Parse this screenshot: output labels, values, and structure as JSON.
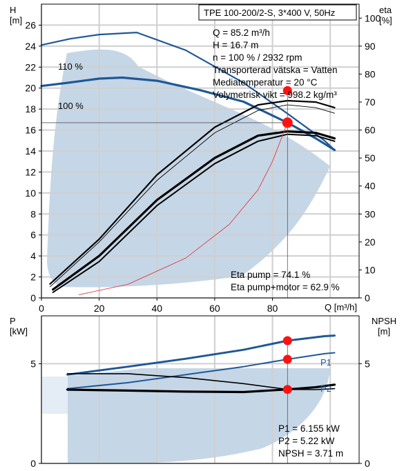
{
  "chart_data": [
    {
      "type": "line",
      "title": "TPE 100-200/2-S, 3*400 V, 50Hz",
      "xlabel": "Q [m³/h]",
      "ylabel_left": [
        "H",
        "[m]"
      ],
      "ylabel_right": [
        "eta",
        "[%]"
      ],
      "xlim": [
        0,
        110
      ],
      "ylim_left": [
        0,
        28
      ],
      "ylim_right": [
        0,
        105
      ],
      "x_ticks": [
        "0",
        "20",
        "40",
        "60",
        "80"
      ],
      "y_ticks_left": [
        "0",
        "2",
        "4",
        "6",
        "8",
        "10",
        "12",
        "14",
        "16",
        "18",
        "20",
        "22",
        "24",
        "26"
      ],
      "y_ticks_right": [
        "0",
        "10",
        "20",
        "30",
        "40",
        "50",
        "60",
        "70",
        "80",
        "90",
        "100"
      ],
      "grid": true,
      "info_lines": [
        "Q = 85.2 m³/h",
        "H = 16.7 m",
        "n = 100 % / 2932 rpm",
        "Transporterad vätska = Vatten",
        "Mediatemperatur = 20 °C",
        "Volymetrisk vikt = 998.2 kg/m³"
      ],
      "result_lines": [
        "Eta pump = 74.1 %",
        "Eta pump+motor = 62.9 %"
      ],
      "curve_labels": [
        "110 %",
        "100 %"
      ],
      "series": [
        {
          "name": "110 %",
          "axis": "left",
          "x": [
            0,
            10,
            20,
            33,
            50,
            70,
            85,
            98,
            101.5
          ],
          "y": [
            24.1,
            24.7,
            25.1,
            25.3,
            23.6,
            20.5,
            17.6,
            15.0,
            14.1
          ]
        },
        {
          "name": "100 %",
          "axis": "left",
          "x": [
            0,
            9,
            20,
            28,
            40,
            55,
            70,
            85.2,
            95,
            101.5
          ],
          "y": [
            20.2,
            20.5,
            20.9,
            21.0,
            20.7,
            19.8,
            18.7,
            16.7,
            15.2,
            14.1
          ]
        },
        {
          "axis": "right",
          "x": [
            3,
            20,
            40,
            60,
            75,
            85.2,
            95,
            101.5
          ],
          "y": [
            5,
            21,
            44,
            61,
            69,
            70.5,
            70,
            68
          ]
        },
        {
          "axis": "right",
          "x": [
            3,
            20,
            40,
            60,
            75,
            85.2,
            95,
            101.5
          ],
          "y": [
            4,
            20,
            42,
            59,
            67,
            69,
            68,
            66
          ]
        },
        {
          "axis": "right",
          "x": [
            4,
            20,
            40,
            60,
            75,
            85.2,
            95,
            101.5
          ],
          "y": [
            3,
            15,
            35,
            50,
            58,
            59.5,
            59,
            57
          ]
        },
        {
          "axis": "right",
          "x": [
            4,
            20,
            40,
            60,
            75,
            85.2,
            95,
            101.5
          ],
          "y": [
            2,
            13,
            33,
            48,
            56,
            58.5,
            58,
            56
          ]
        },
        {
          "axis": "left",
          "x": [
            13,
            30,
            50,
            65,
            75,
            80,
            85.2
          ],
          "y": [
            0.3,
            1.3,
            3.8,
            7.0,
            10.3,
            13.0,
            16.7
          ]
        }
      ],
      "markers": [
        {
          "axis": "left",
          "x": 85.2,
          "y": 16.7,
          "style": "duty-point"
        },
        {
          "axis": "right",
          "x": 85.2,
          "y": 74.1
        },
        {
          "axis": "right",
          "x": 85.2,
          "y": 62.9
        }
      ]
    },
    {
      "type": "line",
      "ylabel_left": [
        "P",
        "[kW]"
      ],
      "ylabel_right": [
        "NPSH",
        "[m]"
      ],
      "xlim": [
        0,
        110
      ],
      "ylim_left": [
        0,
        7.4
      ],
      "ylim_right": [
        0,
        7.4
      ],
      "y_ticks_left": [
        "0",
        "5"
      ],
      "y_ticks_right": [
        "0",
        "5"
      ],
      "grid": true,
      "curve_labels": [
        "P1",
        "P2"
      ],
      "result_lines": [
        "P1 = 6.155 kW",
        "P2 = 5.22 kW",
        "NPSH = 3.71 m"
      ],
      "series": [
        {
          "name": "P1",
          "axis": "left",
          "x": [
            9,
            30,
            50,
            70,
            85.2,
            98,
            101.5
          ],
          "y": [
            4.45,
            4.85,
            5.25,
            5.7,
            6.155,
            6.38,
            6.41
          ]
        },
        {
          "name": "P2",
          "axis": "left",
          "x": [
            9,
            30,
            50,
            70,
            85.2,
            98,
            101.5
          ],
          "y": [
            3.75,
            4.05,
            4.45,
            4.85,
            5.22,
            5.5,
            5.55
          ]
        },
        {
          "axis": "right",
          "x": [
            9,
            30,
            50,
            70,
            85.2,
            95,
            101.5
          ],
          "y": [
            4.5,
            4.5,
            4.3,
            4.0,
            3.71,
            3.7,
            3.75
          ]
        },
        {
          "axis": "right",
          "x": [
            9,
            30,
            50,
            70,
            85.2,
            95,
            101.5
          ],
          "y": [
            3.7,
            3.65,
            3.6,
            3.58,
            3.71,
            3.82,
            3.95
          ]
        }
      ],
      "markers": [
        {
          "axis": "left",
          "x": 85.2,
          "y": 6.155
        },
        {
          "axis": "left",
          "x": 85.2,
          "y": 5.22
        },
        {
          "axis": "right",
          "x": 85.2,
          "y": 3.71
        }
      ]
    }
  ],
  "colors": {
    "curve_blue": "#1f5896",
    "band_fill": "#c5d6e7",
    "band_light": "#e4edf6",
    "grid": "#cfcfcf",
    "efficiency": "#000000",
    "system_curve": "#e23b3b",
    "marker": "#ff1111",
    "duty_point_fill": "#fff600"
  }
}
